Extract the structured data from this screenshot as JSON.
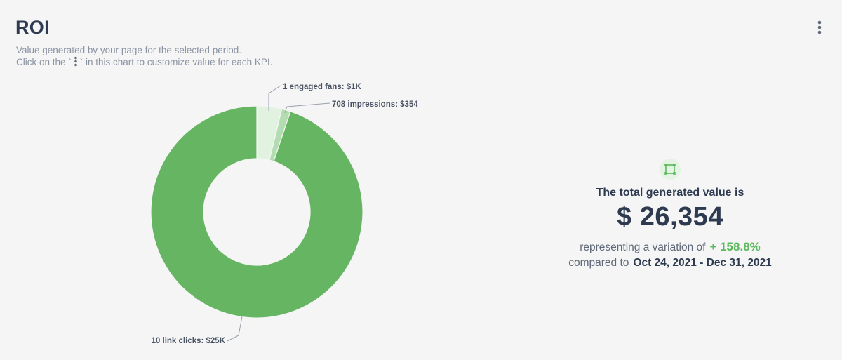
{
  "header": {
    "title": "ROI",
    "subtitle_line1": "Value generated by your page for the selected period.",
    "subtitle_line2_before": "Click on the `",
    "subtitle_line2_after": "` in this chart to customize value for each KPI."
  },
  "icons": {
    "menu": "kebab-vertical-icon",
    "inline_dots": "kebab-vertical-icon",
    "summary": "square-selection-icon"
  },
  "colors": {
    "link_clicks": "#66b562",
    "engaged_fans": "#e2f2e1",
    "impressions": "#b4dcb1",
    "variation_positive": "#5cb85c",
    "text_dark": "#2e3a4f"
  },
  "chart_data": {
    "type": "pie",
    "style": "donut",
    "slices": [
      {
        "label": "1 engaged fans: $1K",
        "kpi": "engaged fans",
        "count": 1,
        "value": 1000,
        "color": "#e2f2e1"
      },
      {
        "label": "708 impressions: $354",
        "kpi": "impressions",
        "count": 708,
        "value": 354,
        "color": "#b4dcb1"
      },
      {
        "label": "10 link clicks: $25K",
        "kpi": "link clicks",
        "count": 10,
        "value": 25000,
        "color": "#66b562"
      }
    ]
  },
  "summary": {
    "label": "The total generated value is",
    "value": "$ 26,354",
    "variation_text": "representing a variation of",
    "variation_value": "+ 158.8%",
    "compared_text": "compared to",
    "compared_period": "Oct 24, 2021 - Dec 31, 2021"
  }
}
